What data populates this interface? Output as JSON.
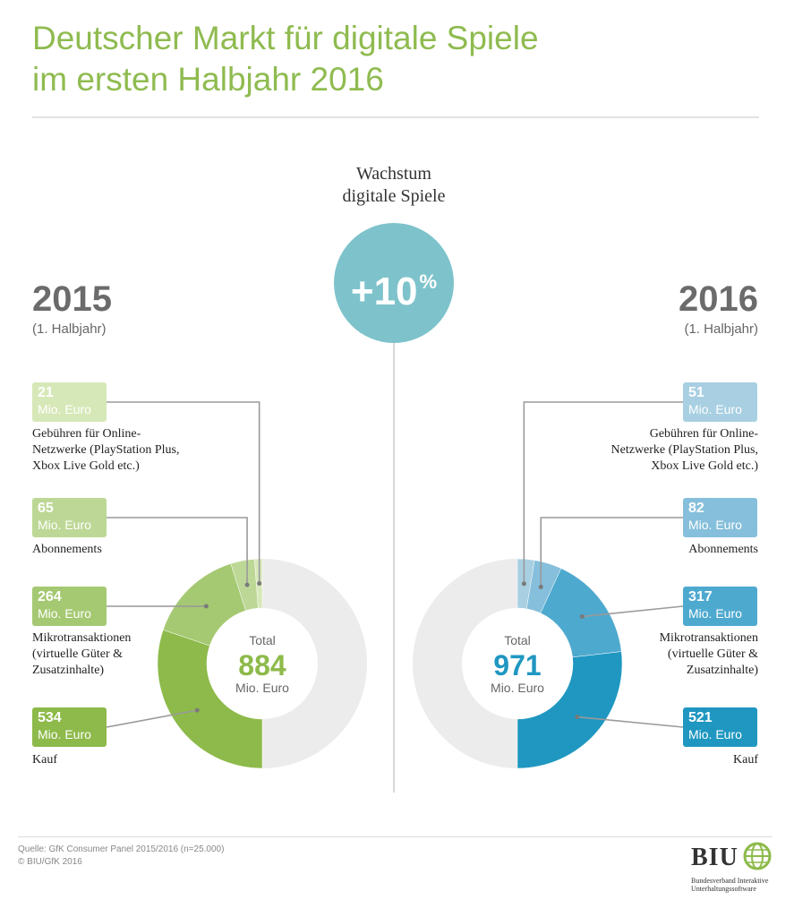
{
  "title_line1": "Deutscher Markt für digitale Spiele",
  "title_line2": "im ersten Halbjahr 2016",
  "growth": {
    "label_line1": "Wachstum",
    "label_line2": "digitale Spiele",
    "value": "+10",
    "unit": "%"
  },
  "unit_label": "Mio. Euro",
  "total_label": "Total",
  "chart_data": [
    {
      "type": "pie",
      "year": "2015",
      "period": "(1. Halbjahr)",
      "total": 884,
      "total_display": "884",
      "color": "#8dba4a",
      "slices": [
        {
          "label": "Gebühren für Online-Netzwerke (PlayStation Plus, Xbox Live Gold etc.)",
          "value": 21,
          "value_display": "21",
          "color": "#d7e8b8"
        },
        {
          "label": "Abonnements",
          "value": 65,
          "value_display": "65",
          "color": "#bdd896"
        },
        {
          "label": "Mikrotransaktionen (virtuelle Güter & Zusatzinhalte)",
          "value": 264,
          "value_display": "264",
          "color": "#a5c972"
        },
        {
          "label": "Kauf",
          "value": 534,
          "value_display": "534",
          "color": "#8dba4a"
        }
      ]
    },
    {
      "type": "pie",
      "year": "2016",
      "period": "(1. Halbjahr)",
      "total": 971,
      "total_display": "971",
      "color": "#1f97c1",
      "slices": [
        {
          "label": "Gebühren für Online-Netzwerke (PlayStation Plus, Xbox Live Gold etc.)",
          "value": 51,
          "value_display": "51",
          "color": "#a8cfe2"
        },
        {
          "label": "Abonnements",
          "value": 82,
          "value_display": "82",
          "color": "#86bfdb"
        },
        {
          "label": "Mikrotransaktionen (virtuelle Güter & Zusatzinhalte)",
          "value": 317,
          "value_display": "317",
          "color": "#4ea9cf"
        },
        {
          "label": "Kauf",
          "value": 521,
          "value_display": "521",
          "color": "#1f97c1"
        }
      ]
    }
  ],
  "categories": {
    "c1_l1": "Gebühren für Online-",
    "c1_l2": "Netzwerke (PlayStation Plus,",
    "c1_l3": "Xbox Live Gold etc.)",
    "c2": "Abonnements",
    "c3_l1": "Mikrotransaktionen",
    "c3_l2": "(virtuelle Güter &",
    "c3_l3": "Zusatzinhalte)",
    "c4": "Kauf"
  },
  "source_line1": "Quelle: GfK Consumer Panel 2015/2016 (n=25.000)",
  "source_line2": "© BIU/GfK 2016",
  "logo": {
    "name": "BIU",
    "sub1": "Bundesverband Interaktive",
    "sub2": "Unterhaltungssoftware"
  },
  "colors": {
    "title": "#8fbb50",
    "growth": "#7ec3cb",
    "gray_ring": "#ececec"
  }
}
